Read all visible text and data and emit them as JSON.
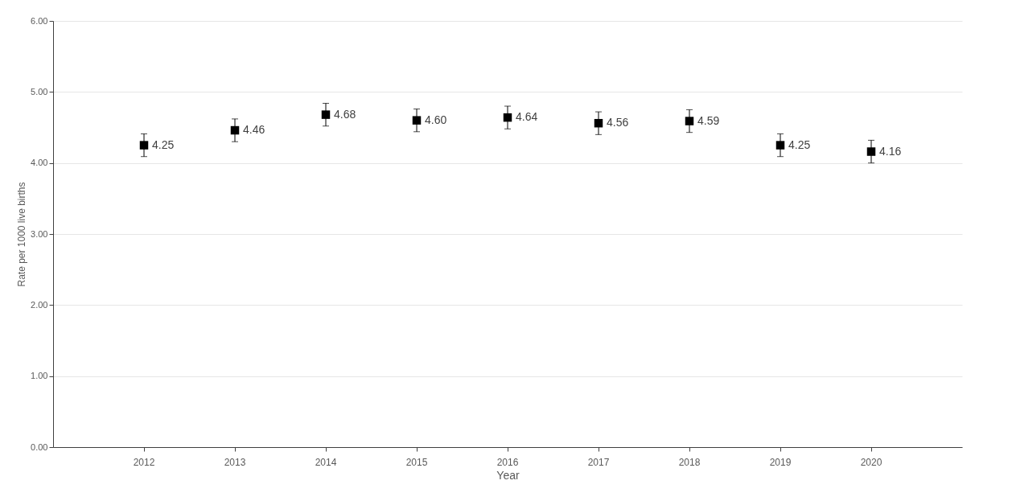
{
  "chart_data": {
    "type": "scatter",
    "xlabel": "Year",
    "ylabel": "Rate per 1000 live births",
    "categories": [
      "2012",
      "2013",
      "2014",
      "2015",
      "2016",
      "2017",
      "2018",
      "2019",
      "2020"
    ],
    "series": [
      {
        "color": "#000000",
        "values": [
          4.25,
          4.46,
          4.68,
          4.6,
          4.64,
          4.56,
          4.59,
          4.25,
          4.16
        ],
        "errors": [
          0.16,
          0.16,
          0.16,
          0.16,
          0.16,
          0.16,
          0.16,
          0.16,
          0.16
        ]
      }
    ],
    "value_labels": [
      "4.25",
      "4.46",
      "4.68",
      "4.60",
      "4.64",
      "4.56",
      "4.59",
      "4.25",
      "4.16"
    ],
    "ylim": [
      0,
      6
    ],
    "yticks": [
      {
        "value": 0,
        "label": "0.00"
      },
      {
        "value": 1,
        "label": "1.00"
      },
      {
        "value": 2,
        "label": "2.00"
      },
      {
        "value": 3,
        "label": "3.00"
      },
      {
        "value": 4,
        "label": "4.00"
      },
      {
        "value": 5,
        "label": "5.00"
      },
      {
        "value": 6,
        "label": "6.00"
      }
    ],
    "grid": "y",
    "marker": "square"
  }
}
